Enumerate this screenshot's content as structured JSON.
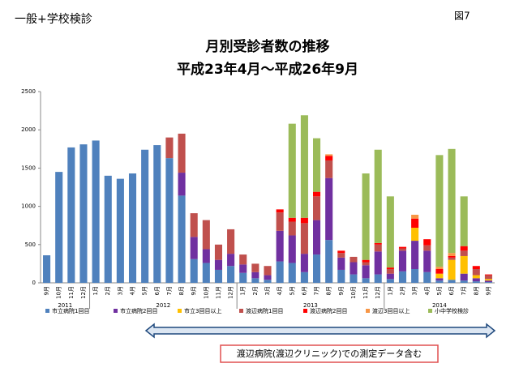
{
  "header": {
    "label": "一般+学校検診",
    "figure": "図7"
  },
  "note": "渡辺病院(渡辺クリニック)での測定データ含む",
  "chart_data": {
    "type": "bar",
    "stacked": true,
    "title": "月別受診者数の推移",
    "subtitle": "平成23年4月～平成26年9月",
    "categories": [
      "9月",
      "10月",
      "11月",
      "12月",
      "1月",
      "2月",
      "3月",
      "4月",
      "5月",
      "6月",
      "7月",
      "8月",
      "9月",
      "10月",
      "11月",
      "12月",
      "1月",
      "2月",
      "3月",
      "4月",
      "5月",
      "6月",
      "7月",
      "8月",
      "9月",
      "10月",
      "11月",
      "12月",
      "1月",
      "2月",
      "3月",
      "4月",
      "5月",
      "6月",
      "7月",
      "8月",
      "9月"
    ],
    "groups": [
      "2011",
      null,
      null,
      null,
      "2012",
      null,
      null,
      null,
      null,
      null,
      null,
      null,
      null,
      null,
      null,
      null,
      "2013",
      null,
      null,
      null,
      null,
      null,
      null,
      null,
      null,
      null,
      null,
      null,
      "2014",
      null,
      null,
      null,
      null,
      null,
      null,
      null,
      null
    ],
    "ylim": [
      0,
      2500
    ],
    "yticks": [
      0,
      500,
      1000,
      1500,
      2000,
      2500
    ],
    "grid": false,
    "series": [
      {
        "name": "市立病院1回目",
        "color": "#4f81bd",
        "values": [
          360,
          1450,
          1770,
          1810,
          1860,
          1400,
          1360,
          1430,
          1740,
          1800,
          1630,
          1140,
          310,
          260,
          170,
          220,
          130,
          60,
          40,
          280,
          260,
          140,
          370,
          560,
          170,
          110,
          60,
          110,
          50,
          150,
          180,
          140,
          30,
          40,
          30,
          20,
          10
        ]
      },
      {
        "name": "市立病院2回目",
        "color": "#7030a0",
        "values": [
          0,
          0,
          0,
          0,
          0,
          0,
          0,
          0,
          0,
          0,
          0,
          300,
          290,
          180,
          130,
          160,
          110,
          80,
          60,
          400,
          360,
          240,
          450,
          810,
          160,
          160,
          170,
          300,
          70,
          270,
          370,
          280,
          30,
          0,
          90,
          40,
          20
        ]
      },
      {
        "name": "市立3回目以上",
        "color": "#ffc000",
        "values": [
          0,
          0,
          0,
          0,
          0,
          0,
          0,
          0,
          0,
          0,
          0,
          0,
          0,
          0,
          0,
          0,
          0,
          0,
          0,
          0,
          0,
          0,
          0,
          0,
          0,
          0,
          0,
          0,
          0,
          0,
          170,
          0,
          60,
          260,
          230,
          40,
          20
        ]
      },
      {
        "name": "渡辺病院1回目",
        "color": "#c0504d",
        "values": [
          0,
          0,
          0,
          0,
          0,
          0,
          0,
          0,
          0,
          0,
          270,
          510,
          310,
          380,
          200,
          320,
          130,
          110,
          120,
          240,
          180,
          400,
          310,
          230,
          60,
          70,
          40,
          90,
          60,
          30,
          0,
          70,
          0,
          30,
          70,
          80,
          50
        ]
      },
      {
        "name": "渡辺病院2回目",
        "color": "#ff0000",
        "values": [
          0,
          0,
          0,
          0,
          0,
          0,
          0,
          0,
          0,
          0,
          0,
          0,
          0,
          0,
          0,
          0,
          0,
          0,
          0,
          40,
          50,
          70,
          60,
          60,
          30,
          0,
          30,
          20,
          20,
          20,
          120,
          80,
          60,
          20,
          60,
          40,
          10
        ]
      },
      {
        "name": "渡辺3回目以上",
        "color": "#f79646",
        "values": [
          0,
          0,
          0,
          0,
          0,
          0,
          0,
          0,
          0,
          0,
          0,
          0,
          0,
          0,
          0,
          0,
          0,
          0,
          0,
          0,
          0,
          0,
          0,
          20,
          0,
          0,
          0,
          0,
          0,
          0,
          50,
          0,
          30,
          40,
          0,
          0,
          0
        ]
      },
      {
        "name": "小中学校検診",
        "color": "#9bbb59",
        "values": [
          0,
          0,
          0,
          0,
          0,
          0,
          0,
          0,
          0,
          0,
          0,
          0,
          0,
          0,
          0,
          0,
          0,
          0,
          0,
          0,
          1230,
          1340,
          700,
          0,
          0,
          0,
          1130,
          1220,
          930,
          0,
          0,
          0,
          1460,
          1360,
          650,
          0,
          0
        ]
      }
    ]
  }
}
